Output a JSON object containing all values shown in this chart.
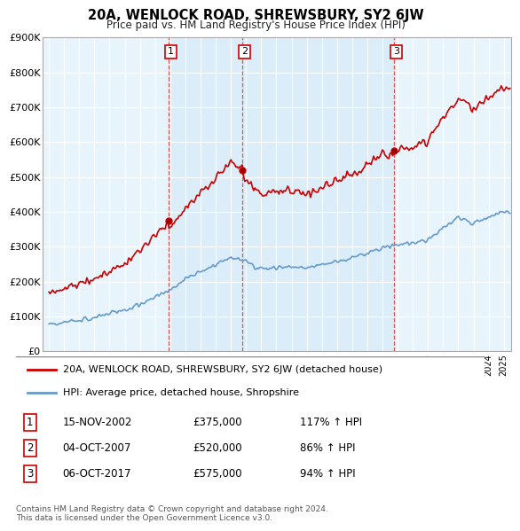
{
  "title": "20A, WENLOCK ROAD, SHREWSBURY, SY2 6JW",
  "subtitle": "Price paid vs. HM Land Registry's House Price Index (HPI)",
  "ylim": [
    0,
    900000
  ],
  "yticks": [
    0,
    100000,
    200000,
    300000,
    400000,
    500000,
    600000,
    700000,
    800000,
    900000
  ],
  "ytick_labels": [
    "£0",
    "£100K",
    "£200K",
    "£300K",
    "£400K",
    "£500K",
    "£600K",
    "£700K",
    "£800K",
    "£900K"
  ],
  "hpi_color": "#6699cc",
  "price_color": "#cc0000",
  "dashed_color": "#dd4444",
  "shade_color": "#d0e8f8",
  "bg_color": "#ffffff",
  "plot_bg_color": "#e8f4fc",
  "grid_color": "#ffffff",
  "sale1_date": 2002.88,
  "sale2_date": 2007.76,
  "sale3_date": 2017.76,
  "sale1_price": 375000,
  "sale2_price": 520000,
  "sale3_price": 575000,
  "legend_property_label": "20A, WENLOCK ROAD, SHREWSBURY, SY2 6JW (detached house)",
  "legend_hpi_label": "HPI: Average price, detached house, Shropshire",
  "table_rows": [
    {
      "num": "1",
      "date": "15-NOV-2002",
      "price": "£375,000",
      "hpi": "117% ↑ HPI"
    },
    {
      "num": "2",
      "date": "04-OCT-2007",
      "price": "£520,000",
      "hpi": "86% ↑ HPI"
    },
    {
      "num": "3",
      "date": "06-OCT-2017",
      "price": "£575,000",
      "hpi": "94% ↑ HPI"
    }
  ],
  "footer": "Contains HM Land Registry data © Crown copyright and database right 2024.\nThis data is licensed under the Open Government Licence v3.0."
}
